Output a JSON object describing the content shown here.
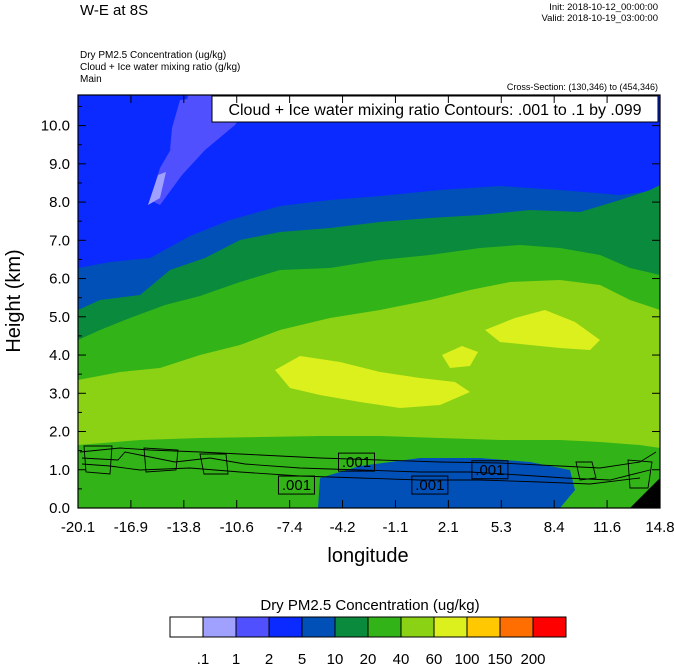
{
  "header": {
    "title": "W-E at 8S",
    "init": "Init: 2018-10-12_00:00:00",
    "valid": "Valid: 2018-10-19_03:00:00",
    "field_lines": [
      "Dry PM2.5 Concentration   (ug/kg)",
      "Cloud + Ice water mixing ratio   (g/kg)",
      "Main"
    ],
    "cross_section": "Cross-Section: (130,346) to (454,346)"
  },
  "chart_data": {
    "type": "contour",
    "title": "Cloud + Ice water mixing ratio Contours: .001 to .1 by .099",
    "xlabel": "longitude",
    "ylabel": "Height (km)",
    "xlim": [
      -20.1,
      14.8
    ],
    "ylim": [
      0.0,
      10.8
    ],
    "x_ticks": [
      "-20.1",
      "-16.9",
      "-13.8",
      "-10.6",
      "-7.4",
      "-4.2",
      "-1.1",
      "2.1",
      "5.3",
      "8.4",
      "11.6",
      "14.8"
    ],
    "y_ticks": [
      "0.0",
      "1.0",
      "2.0",
      "3.0",
      "4.0",
      "5.0",
      "6.0",
      "7.0",
      "8.0",
      "9.0",
      "10.0"
    ],
    "contour_labels": [
      {
        "text": ".001",
        "x": -7.0,
        "y": 0.6
      },
      {
        "text": ".001",
        "x": -3.4,
        "y": 1.2
      },
      {
        "text": ".001",
        "x": 1.0,
        "y": 0.6
      },
      {
        "text": ".001",
        "x": 4.6,
        "y": 1.0
      }
    ],
    "colorbar": {
      "title": "Dry PM2.5 Concentration  (ug/kg)",
      "levels": [
        ".1",
        "1",
        "2",
        "5",
        "10",
        "20",
        "40",
        "60",
        "100",
        "150",
        "200"
      ],
      "colors": [
        "#ffffff",
        "#a0a0ff",
        "#5050ff",
        "#0a2aff",
        "#0050b8",
        "#0a8a3c",
        "#32b418",
        "#8cd214",
        "#dcf01e",
        "#ffc800",
        "#ff6e00",
        "#ff0000"
      ]
    }
  }
}
